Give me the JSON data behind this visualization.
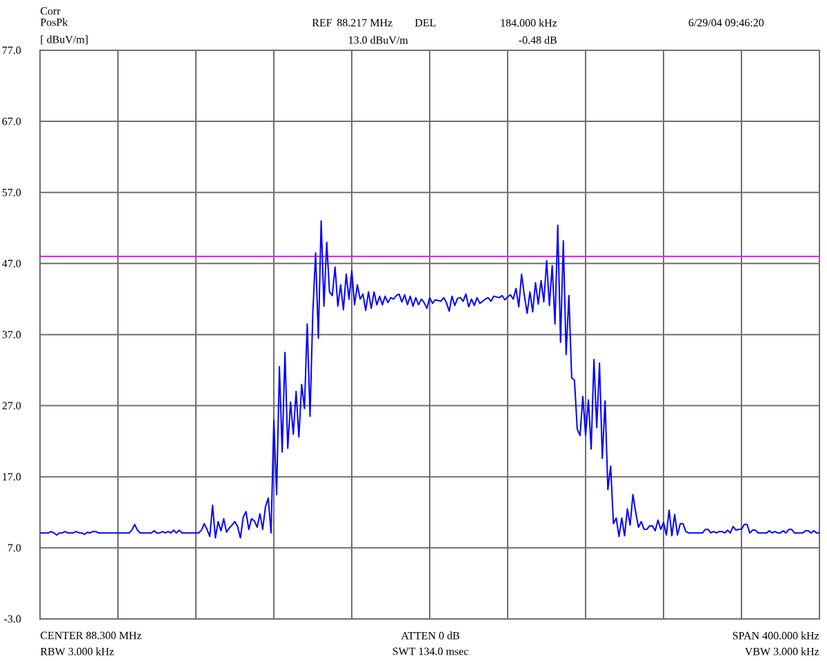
{
  "chart_data": {
    "type": "line",
    "ylabel": "[ dBuV/m]",
    "annotations": [
      "Corr",
      "PosPk",
      "REF",
      "88.217 MHz",
      "DEL",
      "184.000 kHz",
      "6/29/04 09:46:20",
      "13.0 dBuV/m",
      "-0.48 dB",
      "CENTER 88.300 MHz",
      "RBW 3.000 kHz",
      "ATTEN 0 dB",
      "SWT 134.0 msec",
      "SPAN 400.000 kHz",
      "VBW 3.000 kHz"
    ],
    "categories": [
      null,
      null,
      null,
      null,
      null,
      null,
      null,
      null,
      null,
      null,
      null,
      null,
      null,
      null,
      null,
      null,
      null,
      null,
      null,
      null,
      null,
      null,
      null,
      null,
      null,
      null,
      null,
      null,
      null,
      null,
      null,
      null,
      null,
      null,
      null,
      null,
      null,
      null,
      null,
      null,
      null,
      null,
      null,
      null,
      null,
      null,
      null,
      null,
      null,
      null,
      null,
      null,
      null,
      null,
      null,
      null,
      null,
      null,
      null,
      null,
      null,
      null,
      null,
      null,
      null,
      null,
      null,
      null,
      null,
      null,
      null,
      null,
      null,
      null,
      null,
      null,
      null,
      null,
      null,
      null,
      null,
      null,
      null,
      null,
      null,
      null,
      null,
      null,
      null,
      null,
      null,
      null,
      null,
      null,
      null,
      null,
      null,
      null,
      null,
      null,
      null,
      null,
      null,
      null,
      null,
      null,
      null,
      null,
      null,
      null,
      null,
      null,
      null,
      null,
      null,
      null,
      null,
      null,
      null,
      null,
      null,
      null,
      null,
      null,
      null,
      null,
      null,
      null,
      null,
      null,
      null,
      null,
      null,
      null,
      null,
      null,
      null,
      null,
      null,
      null,
      null,
      null,
      null,
      null,
      null,
      null,
      null,
      null,
      null,
      null,
      null,
      null,
      null,
      null,
      null,
      null,
      null,
      null,
      null,
      null,
      null,
      null,
      null,
      null,
      null,
      null,
      null,
      null,
      null,
      null,
      null,
      null,
      null,
      null,
      null,
      null,
      null,
      null,
      null,
      null,
      null,
      null,
      null,
      null,
      null,
      null,
      null,
      null,
      null,
      null,
      null,
      null,
      null,
      null,
      null,
      null,
      null,
      null,
      null,
      null,
      null,
      null,
      null,
      null,
      null,
      null,
      null,
      null,
      null,
      null,
      null,
      null,
      null,
      null,
      null,
      null,
      null,
      null,
      null,
      null,
      null,
      null,
      null,
      null,
      null,
      null,
      null,
      null,
      null,
      null,
      null,
      null,
      null,
      null,
      null,
      null,
      null,
      null,
      null,
      null,
      null,
      null,
      null,
      null,
      null,
      null,
      null,
      null,
      null,
      null,
      null,
      null,
      null,
      null,
      null,
      null,
      null,
      null,
      null,
      null,
      null,
      null,
      null,
      null,
      null,
      null,
      null,
      null,
      null,
      null,
      null,
      null,
      null,
      null,
      null,
      null,
      null,
      null,
      null,
      null,
      null
    ],
    "values": [
      9.1,
      9.1,
      9.1,
      9.1,
      9.3,
      9.1,
      8.8,
      9.1,
      9.1,
      9.3,
      9.1,
      9.1,
      9.1,
      9.3,
      9.1,
      9.1,
      8.9,
      9.2,
      9.1,
      9.3,
      9.3,
      9.1,
      9.1,
      9.1,
      9.1,
      9.1,
      9.1,
      9.1,
      9.1,
      9.1,
      9.1,
      9.1,
      9.1,
      9.5,
      10.3,
      9.5,
      9.1,
      9.1,
      9.1,
      9.1,
      9.1,
      9.4,
      9.1,
      9.1,
      9.3,
      9.1,
      9.3,
      9.1,
      9.5,
      9.1,
      9.5,
      9.1,
      9.1,
      9.1,
      9.1,
      9.1,
      9.1,
      9.1,
      9.5,
      10.4,
      9.6,
      8.6,
      13.0,
      8.4,
      10.7,
      9.4,
      11.1,
      9.2,
      9.8,
      10.2,
      10.7,
      10.0,
      8.4,
      11.3,
      12.1,
      9.6,
      11.1,
      10.8,
      9.9,
      11.8,
      9.6,
      12.8,
      14.0,
      9.1,
      25,
      14.5,
      32.5,
      20.5,
      34.5,
      21,
      27.5,
      23,
      29,
      22.6,
      30,
      26.6,
      38.5,
      25.5,
      40,
      48.5,
      36.5,
      53,
      41,
      50,
      43,
      42.5,
      46.5,
      41,
      44,
      40.5,
      45.5,
      42,
      46,
      41.2,
      44,
      42,
      42.7,
      40.4,
      43,
      40.7,
      43,
      41.2,
      42.4,
      41.2,
      42.4,
      41.5,
      42.2,
      42.0,
      42.5,
      42.7,
      41.6,
      42.6,
      41.2,
      42.4,
      41.0,
      42.2,
      41.2,
      42.0,
      41.5,
      40.7,
      42.2,
      41.4,
      41.9,
      41.8,
      41.7,
      42.2,
      41.5,
      40.3,
      42.4,
      41.1,
      42.1,
      42.2,
      41.7,
      42.7,
      40.9,
      42.0,
      41.1,
      42.2,
      41.4,
      41.7,
      42.0,
      42.2,
      41.7,
      42.4,
      42.3,
      42.2,
      42.5,
      41.9,
      42.3,
      42.6,
      42.0,
      43.5,
      40.9,
      45.5,
      42.5,
      40,
      43,
      40.2,
      44.3,
      41.3,
      44.6,
      41.6,
      47.4,
      41.1,
      46.7,
      38.5,
      52.4,
      35.9,
      50.2,
      34.2,
      42.5,
      30.9,
      30.6,
      23.7,
      22.8,
      28.3,
      22.8,
      27.8,
      20.9,
      33.5,
      23.9,
      33,
      19.6,
      27.7,
      15.2,
      18.5,
      10.4,
      11.2,
      8.6,
      11.2,
      8.7,
      12.5,
      10.2,
      14.5,
      12,
      9.9,
      10.7,
      9.6,
      9.6,
      10.1,
      10.1,
      9.4,
      10.9,
      9.6,
      10.6,
      8.8,
      12.3,
      8.7,
      11.7,
      8.8,
      10.4,
      10.4,
      9.3,
      9.1,
      9.1,
      9.1,
      9.1,
      9.1,
      9.1,
      9.6,
      9.6,
      9.1,
      9.3,
      9.1,
      9.3,
      9.3,
      9.1,
      9.5,
      9.1,
      10.0,
      9.5,
      9.6,
      9.6,
      10.3,
      10.3,
      9.1,
      9.5,
      9.5,
      9.1,
      9.1,
      9.1,
      9.1,
      9.4,
      9.1,
      9.3,
      9.1,
      9.1,
      9.4,
      9.1,
      9.6,
      9.6,
      9.1,
      9.1,
      9.1,
      9.1,
      9.4,
      9.4,
      9.1,
      9.4,
      9.1,
      9.1
    ],
    "color": "#0000ff",
    "ylim": [
      -3,
      77
    ],
    "yticks": [
      {
        "value": -3,
        "label": "-3.0"
      },
      {
        "value": 7,
        "label": "7.0"
      },
      {
        "value": 17,
        "label": "17.0"
      },
      {
        "value": 27,
        "label": "27.0"
      },
      {
        "value": 37,
        "label": "37.0"
      },
      {
        "value": 47,
        "label": "47.0"
      },
      {
        "value": 57,
        "label": "57.0"
      },
      {
        "value": 67,
        "label": "67.0"
      },
      {
        "value": 77,
        "label": "77.0"
      }
    ],
    "ref_lines": [
      {
        "axis": "y",
        "value": 48,
        "color": "#ff00ff"
      }
    ],
    "grid": true,
    "tick_labels": "y",
    "marker": "none",
    "line_style": "solid"
  }
}
